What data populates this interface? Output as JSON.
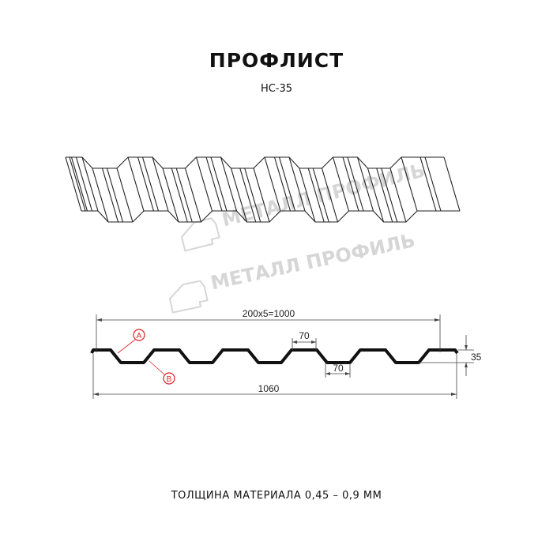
{
  "header": {
    "title": "ПРОФЛИСТ",
    "subtitle": "НС-35"
  },
  "watermark": {
    "text": "МЕТАЛЛ ПРОФИЛЬ",
    "color": "#d6d6d6"
  },
  "drawing": {
    "dimensions": {
      "pitch_total": "200x5=1000",
      "crest_width": "70",
      "trough_width": "70",
      "height": "35",
      "full_width": "1060"
    },
    "markers": {
      "a": "A",
      "b": "B",
      "color": "#d22222"
    }
  },
  "footer": {
    "thickness": "ТОЛЩИНА МАТЕРИАЛА 0,45 – 0,9 ММ"
  }
}
